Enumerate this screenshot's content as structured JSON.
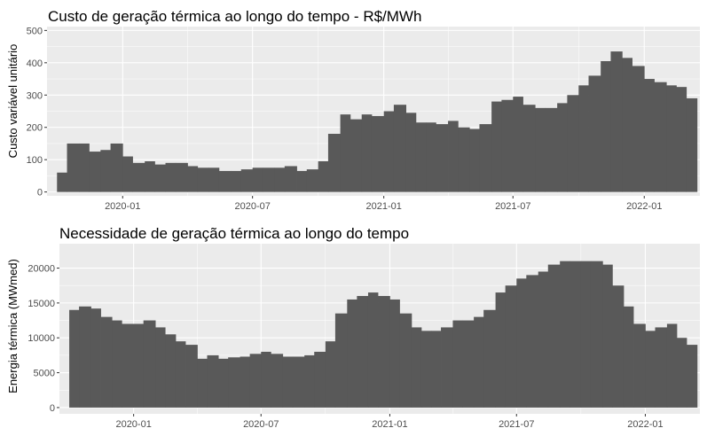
{
  "chart_data": [
    {
      "type": "bar",
      "title": "Custo de geração térmica ao longo do tempo - R$/MWh",
      "xlabel": "",
      "ylabel": "Custo variável unitário",
      "x_range": [
        "2019-09-17",
        "2022-03-20"
      ],
      "ylim": [
        -12,
        512
      ],
      "y_ticks": [
        0,
        100,
        200,
        300,
        400,
        500
      ],
      "y_tick_labels": [
        "0",
        "100",
        "200",
        "300",
        "400",
        "500"
      ],
      "x_ticks": [
        "2020-01-01",
        "2020-07-01",
        "2021-01-01",
        "2021-07-01",
        "2022-01-01"
      ],
      "x_tick_labels": [
        "2020-01",
        "2020-07",
        "2021-01",
        "2021-07",
        "2022-01"
      ],
      "grid": true,
      "bar_color": "#595959",
      "x": [
        "2019-10-01",
        "2019-10-15",
        "2019-11-01",
        "2019-11-15",
        "2019-12-01",
        "2019-12-15",
        "2020-01-01",
        "2020-01-15",
        "2020-02-01",
        "2020-02-15",
        "2020-03-01",
        "2020-03-15",
        "2020-04-01",
        "2020-04-15",
        "2020-05-01",
        "2020-05-15",
        "2020-06-01",
        "2020-06-15",
        "2020-07-01",
        "2020-07-15",
        "2020-08-01",
        "2020-08-15",
        "2020-09-01",
        "2020-09-15",
        "2020-10-01",
        "2020-10-15",
        "2020-11-01",
        "2020-11-15",
        "2020-12-01",
        "2020-12-15",
        "2021-01-01",
        "2021-01-15",
        "2021-02-01",
        "2021-02-15",
        "2021-03-01",
        "2021-03-15",
        "2021-04-01",
        "2021-04-15",
        "2021-05-01",
        "2021-05-15",
        "2021-06-01",
        "2021-06-15",
        "2021-07-01",
        "2021-07-15",
        "2021-08-01",
        "2021-08-15",
        "2021-09-01",
        "2021-09-15",
        "2021-10-01",
        "2021-10-15",
        "2021-11-01",
        "2021-11-15",
        "2021-12-01",
        "2021-12-15",
        "2022-01-01",
        "2022-01-15",
        "2022-02-01",
        "2022-02-15",
        "2022-03-01"
      ],
      "values": [
        60,
        150,
        150,
        125,
        130,
        150,
        110,
        90,
        95,
        85,
        90,
        90,
        80,
        75,
        75,
        65,
        65,
        70,
        75,
        75,
        75,
        80,
        65,
        70,
        95,
        180,
        240,
        225,
        240,
        235,
        250,
        270,
        245,
        215,
        215,
        210,
        220,
        200,
        195,
        210,
        280,
        285,
        295,
        270,
        260,
        260,
        275,
        300,
        330,
        360,
        405,
        435,
        415,
        390,
        350,
        340,
        330,
        325,
        290
      ]
    },
    {
      "type": "bar",
      "title": "Necessidade de geração térmica ao longo do tempo",
      "xlabel": "",
      "ylabel": "Energia térmica (MWmed)",
      "x_range": [
        "2019-09-17",
        "2022-03-20"
      ],
      "ylim": [
        -900,
        23500
      ],
      "y_ticks": [
        0,
        5000,
        10000,
        15000,
        20000
      ],
      "y_tick_labels": [
        "0",
        "5000",
        "10000",
        "15000",
        "20000"
      ],
      "x_ticks": [
        "2020-01-01",
        "2020-07-01",
        "2021-01-01",
        "2021-07-01",
        "2022-01-01"
      ],
      "x_tick_labels": [
        "2020-01",
        "2020-07",
        "2021-01",
        "2021-07",
        "2022-01"
      ],
      "grid": true,
      "bar_color": "#595959",
      "x": [
        "2019-10-01",
        "2019-10-15",
        "2019-11-01",
        "2019-11-15",
        "2019-12-01",
        "2019-12-15",
        "2020-01-01",
        "2020-01-15",
        "2020-02-01",
        "2020-02-15",
        "2020-03-01",
        "2020-03-15",
        "2020-04-01",
        "2020-04-15",
        "2020-05-01",
        "2020-05-15",
        "2020-06-01",
        "2020-06-15",
        "2020-07-01",
        "2020-07-15",
        "2020-08-01",
        "2020-08-15",
        "2020-09-01",
        "2020-09-15",
        "2020-10-01",
        "2020-10-15",
        "2020-11-01",
        "2020-11-15",
        "2020-12-01",
        "2020-12-15",
        "2021-01-01",
        "2021-01-15",
        "2021-02-01",
        "2021-02-15",
        "2021-03-01",
        "2021-03-15",
        "2021-04-01",
        "2021-04-15",
        "2021-05-01",
        "2021-05-15",
        "2021-06-01",
        "2021-06-15",
        "2021-07-01",
        "2021-07-15",
        "2021-08-01",
        "2021-08-15",
        "2021-09-01",
        "2021-09-15",
        "2021-10-01",
        "2021-10-15",
        "2021-11-01",
        "2021-11-15",
        "2021-12-01",
        "2021-12-15",
        "2022-01-01",
        "2022-01-15",
        "2022-02-01",
        "2022-02-15",
        "2022-03-01"
      ],
      "values": [
        14000,
        14500,
        14200,
        13000,
        12500,
        12000,
        12000,
        12500,
        11500,
        10500,
        9500,
        9000,
        7000,
        7500,
        7000,
        7200,
        7300,
        7700,
        8000,
        7700,
        7300,
        7300,
        7500,
        8000,
        9500,
        13500,
        15500,
        16000,
        16500,
        16000,
        15500,
        13500,
        11500,
        11000,
        11000,
        11500,
        12500,
        12500,
        13000,
        14000,
        16500,
        17500,
        18500,
        19000,
        19500,
        20500,
        21000,
        21000,
        21000,
        21000,
        20500,
        17500,
        14500,
        12000,
        11000,
        11500,
        12000,
        10000,
        9000
      ]
    }
  ]
}
